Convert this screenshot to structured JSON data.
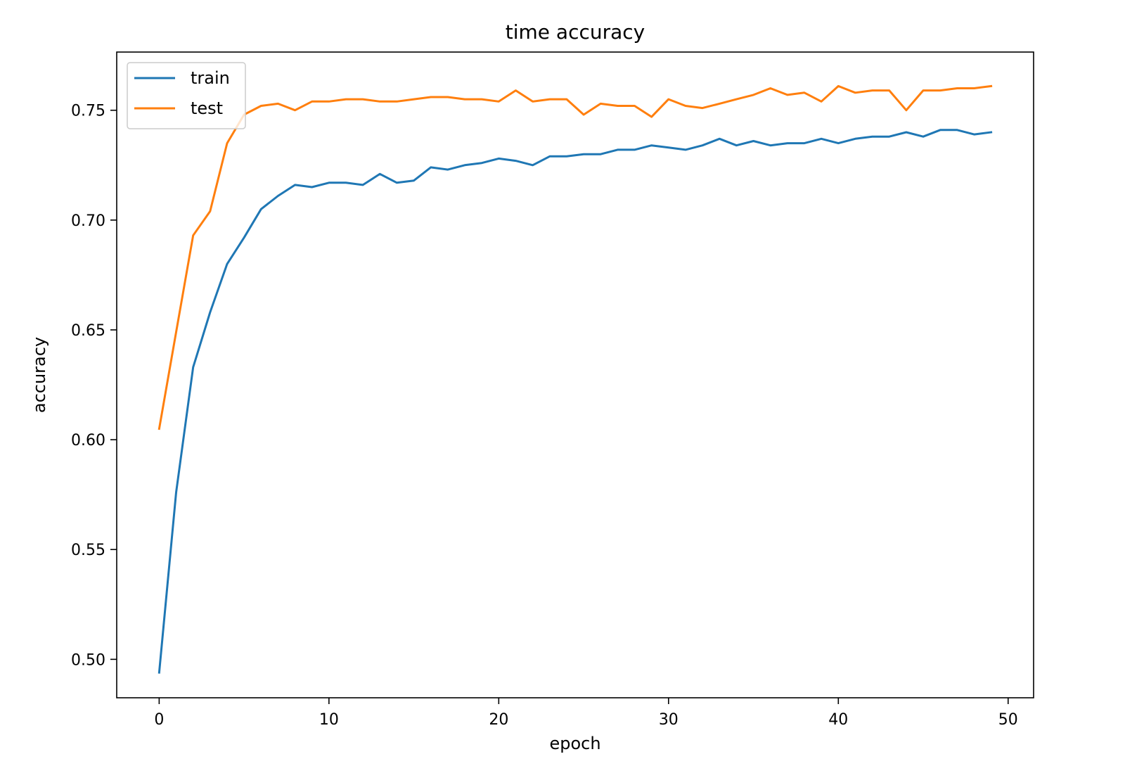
{
  "chart_data": {
    "type": "line",
    "title": "time accuracy",
    "xlabel": "epoch",
    "ylabel": "accuracy",
    "xlim": [
      -2.5,
      51.5
    ],
    "ylim": [
      0.4825,
      0.7765
    ],
    "xticks": [
      0,
      10,
      20,
      30,
      40,
      50
    ],
    "xtick_labels": [
      "0",
      "10",
      "20",
      "30",
      "40",
      "50"
    ],
    "yticks": [
      0.5,
      0.55,
      0.6,
      0.65,
      0.7,
      0.75
    ],
    "ytick_labels": [
      "0.50",
      "0.55",
      "0.60",
      "0.65",
      "0.70",
      "0.75"
    ],
    "grid": false,
    "legend_position": "upper-left",
    "x": [
      0,
      1,
      2,
      3,
      4,
      5,
      6,
      7,
      8,
      9,
      10,
      11,
      12,
      13,
      14,
      15,
      16,
      17,
      18,
      19,
      20,
      21,
      22,
      23,
      24,
      25,
      26,
      27,
      28,
      29,
      30,
      31,
      32,
      33,
      34,
      35,
      36,
      37,
      38,
      39,
      40,
      41,
      42,
      43,
      44,
      45,
      46,
      47,
      48,
      49
    ],
    "series": [
      {
        "name": "train",
        "color": "#1f77b4",
        "values": [
          0.494,
          0.576,
          0.633,
          0.658,
          0.68,
          0.692,
          0.705,
          0.711,
          0.716,
          0.715,
          0.717,
          0.717,
          0.716,
          0.721,
          0.717,
          0.718,
          0.724,
          0.723,
          0.725,
          0.726,
          0.728,
          0.727,
          0.725,
          0.729,
          0.729,
          0.73,
          0.73,
          0.732,
          0.732,
          0.734,
          0.733,
          0.732,
          0.734,
          0.737,
          0.734,
          0.736,
          0.734,
          0.735,
          0.735,
          0.737,
          0.735,
          0.737,
          0.738,
          0.738,
          0.74,
          0.738,
          0.741,
          0.741,
          0.739,
          0.74
        ]
      },
      {
        "name": "test",
        "color": "#ff7f0e",
        "values": [
          0.605,
          0.649,
          0.693,
          0.704,
          0.735,
          0.748,
          0.752,
          0.753,
          0.75,
          0.754,
          0.754,
          0.755,
          0.755,
          0.754,
          0.754,
          0.755,
          0.756,
          0.756,
          0.755,
          0.755,
          0.754,
          0.759,
          0.754,
          0.755,
          0.755,
          0.748,
          0.753,
          0.752,
          0.752,
          0.747,
          0.755,
          0.752,
          0.751,
          0.753,
          0.755,
          0.757,
          0.76,
          0.757,
          0.758,
          0.754,
          0.761,
          0.758,
          0.759,
          0.759,
          0.75,
          0.759,
          0.759,
          0.76,
          0.76,
          0.761
        ]
      }
    ]
  }
}
